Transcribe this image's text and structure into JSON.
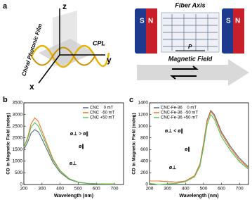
{
  "panel_labels": [
    "a",
    "b",
    "c"
  ],
  "diagram": {
    "axis_z": "z",
    "axis_y": "y",
    "axis_x": "x",
    "film": "Chiral Photonic Film",
    "light": "CPL",
    "fiber": "Fiber Axis",
    "magnet_left": [
      "S",
      "N"
    ],
    "magnet_right": [
      "S",
      "N"
    ],
    "pitch": "P",
    "field": "Magnetic Field"
  },
  "chart_data": [
    {
      "type": "line",
      "x_label": "Wavelength (nm)",
      "y_label": "CD in Magnetic Field (mdeg)",
      "legend": "upper right",
      "x": [
        200,
        220,
        240,
        260,
        280,
        300,
        330,
        360,
        400,
        450,
        500,
        550,
        600,
        650,
        700
      ],
      "xlim": [
        200,
        750
      ],
      "xticks": [
        200,
        300,
        400,
        500,
        600,
        700
      ],
      "ylim": [
        0,
        3500
      ],
      "yticks": [
        0,
        500,
        1000,
        1500,
        2000,
        2500,
        3000,
        3500
      ],
      "series": [
        {
          "name": "CNC    0 mT",
          "color": "#5f6b7a",
          "values": [
            1500,
            1800,
            2200,
            2350,
            2250,
            1950,
            1450,
            950,
            520,
            220,
            90,
            45,
            30,
            20,
            20
          ]
        },
        {
          "name": "CNC  -50 mT",
          "color": "#e8792f",
          "values": [
            1600,
            2000,
            2600,
            2850,
            2700,
            2300,
            1700,
            1100,
            600,
            250,
            100,
            50,
            30,
            20,
            20
          ]
        },
        {
          "name": "CNC +50 mT",
          "color": "#5cc25a",
          "values": [
            1600,
            1950,
            2450,
            2650,
            2500,
            2150,
            1600,
            1050,
            580,
            240,
            100,
            50,
            30,
            20,
            20
          ]
        }
      ],
      "annotations": [
        "ø⊥ > ø∥",
        "ø∥",
        "ø⊥"
      ]
    },
    {
      "type": "line",
      "x_label": "Wavelength (nm)",
      "y_label": "CD in Magnetic Field (mdeg)",
      "legend": "upper left",
      "x": [
        200,
        250,
        300,
        350,
        400,
        450,
        480,
        500,
        520,
        540,
        560,
        600,
        650,
        700,
        750
      ],
      "xlim": [
        200,
        750
      ],
      "xticks": [
        200,
        300,
        400,
        500,
        600,
        700
      ],
      "ylim": [
        0,
        1400
      ],
      "yticks": [
        0,
        200,
        400,
        600,
        800,
        1000,
        1200,
        1400
      ],
      "series": [
        {
          "name": "CNC-Fe-36    0 mT",
          "color": "#5f6b7a",
          "values": [
            60,
            60,
            50,
            40,
            60,
            150,
            350,
            700,
            1100,
            1270,
            1200,
            900,
            650,
            450,
            300
          ]
        },
        {
          "name": "CNC-Fe-36  -50 mT",
          "color": "#e8792f",
          "values": [
            60,
            60,
            50,
            40,
            60,
            150,
            340,
            680,
            1080,
            1250,
            1170,
            870,
            620,
            420,
            280
          ]
        },
        {
          "name": "CNC-Fe-36 +50 mT",
          "color": "#5cc25a",
          "values": [
            20,
            0,
            10,
            20,
            50,
            130,
            310,
            630,
            1020,
            1200,
            1120,
            820,
            580,
            390,
            260
          ]
        }
      ],
      "annotations": [
        "ø⊥ < ø∥",
        "ø∥",
        "ø⊥"
      ]
    }
  ]
}
